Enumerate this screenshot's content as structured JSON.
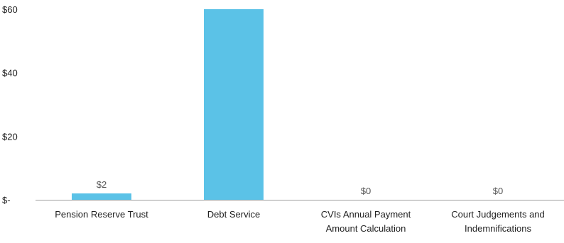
{
  "chart_data": {
    "type": "bar",
    "title": "",
    "xlabel": "",
    "ylabel": "",
    "categories": [
      [
        "Pension Reserve Trust"
      ],
      [
        "Debt Service"
      ],
      [
        "CVIs Annual Payment",
        "Amount Calculation"
      ],
      [
        "Court Judgements and",
        "Indemnifications"
      ]
    ],
    "values": [
      2,
      60,
      0,
      0
    ],
    "data_labels": [
      "$2",
      "",
      "$0",
      "$0"
    ],
    "yticks": [
      {
        "value": 0,
        "label": "$-"
      },
      {
        "value": 20,
        "label": "$20"
      },
      {
        "value": 40,
        "label": "$40"
      },
      {
        "value": 60,
        "label": "$60"
      }
    ],
    "ylim": [
      0,
      60
    ],
    "grid": false,
    "legend": "none",
    "colors": {
      "bar": "#5BC2E7",
      "axis": "#9e9e9e",
      "text": "#222222",
      "data_label": "#555555"
    }
  }
}
